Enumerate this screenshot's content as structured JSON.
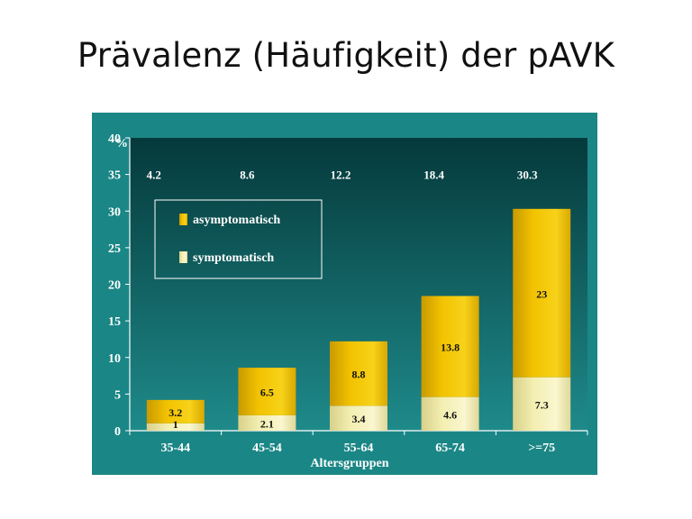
{
  "slide": {
    "title": "Prävalenz (Häufigkeit) der pAVK"
  },
  "colors": {
    "panel": "#1b8686",
    "plot_top": "#05393b",
    "plot_bottom": "#1f8a8a",
    "asymptomatic": "#f2c200",
    "symptomatic": "#f3eeb0"
  },
  "chart_data": {
    "type": "bar",
    "stacked": true,
    "categories": [
      "35-44",
      "45-54",
      "55-64",
      "65-74",
      ">=75"
    ],
    "series": [
      {
        "name": "symptomatisch",
        "values": [
          1,
          2.1,
          3.4,
          4.6,
          7.3
        ],
        "labels": [
          "1",
          "2.1",
          "3.4",
          "4.6",
          "7.3"
        ]
      },
      {
        "name": "asymptomatisch",
        "values": [
          3.2,
          6.5,
          8.8,
          13.8,
          23
        ],
        "labels": [
          "3.2",
          "6.5",
          "8.8",
          "13.8",
          "23"
        ]
      }
    ],
    "totals": [
      "4.2",
      "8.6",
      "12.2",
      "18.4",
      "30.3"
    ],
    "ylim": [
      0,
      40
    ],
    "yticks": [
      "0",
      "5",
      "10",
      "15",
      "20",
      "25",
      "30",
      "35",
      "40"
    ],
    "ylabel": "%",
    "xlabel": "Altersgruppen",
    "legend": {
      "placement": "top-left",
      "entries": [
        "asymptomatisch",
        "symptomatisch"
      ]
    },
    "grid": false
  }
}
